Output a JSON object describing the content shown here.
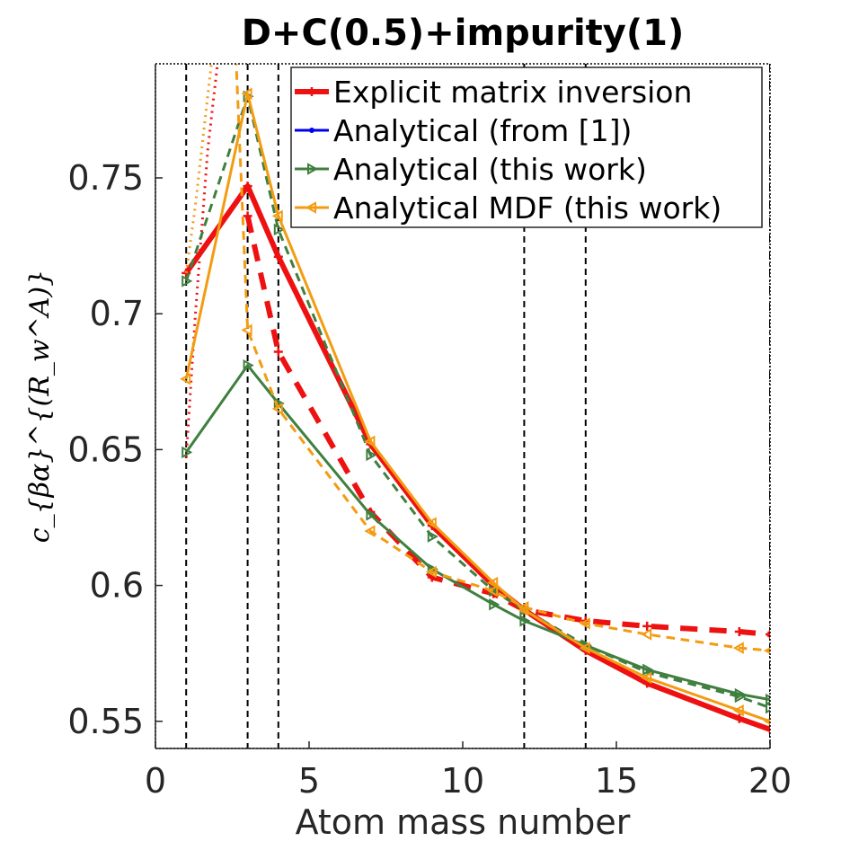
{
  "chart_data": {
    "type": "line",
    "title": "D+C(0.5)+impurity(1)",
    "xlabel": "Atom mass number",
    "ylabel": "c_{βα}^{(R_w^A)}",
    "xlim": [
      0,
      20
    ],
    "ylim": [
      0.54,
      0.792
    ],
    "xticks": [
      0,
      5,
      10,
      15,
      20
    ],
    "xtick_labels": [
      "0",
      "5",
      "10",
      "15",
      "20"
    ],
    "yticks": [
      0.55,
      0.6,
      0.65,
      0.7,
      0.75
    ],
    "ytick_labels": [
      "0.55",
      "0.6",
      "0.65",
      "0.7",
      "0.75"
    ],
    "reference_lines": [
      {
        "x": 1,
        "style": "dashed"
      },
      {
        "x": 3,
        "style": "dashed"
      },
      {
        "x": 4,
        "style": "dashed"
      },
      {
        "x": 12,
        "style": "dashed"
      },
      {
        "x": 14,
        "style": "dashed"
      },
      {
        "x": 20,
        "style": "dashdot"
      }
    ],
    "legend_position": "top-right",
    "series": [
      {
        "name": "Explicit matrix inversion",
        "color": "#ee1111",
        "dash": "solid",
        "width": 6,
        "marker": "plus",
        "show_in_legend": true,
        "x": [
          1,
          3,
          4,
          7,
          9,
          11,
          12,
          14,
          16,
          19,
          20
        ],
        "y": [
          0.715,
          0.747,
          0.721,
          0.652,
          0.622,
          0.6,
          0.591,
          0.576,
          0.564,
          0.551,
          0.547
        ]
      },
      {
        "name": "Explicit matrix inversion (dashed)",
        "color": "#ee1111",
        "dash": "dashed",
        "width": 6,
        "marker": "plus",
        "show_in_legend": false,
        "x": [
          3,
          4,
          7,
          9,
          11,
          12,
          14,
          16,
          19,
          20
        ],
        "y": [
          0.736,
          0.686,
          0.627,
          0.603,
          0.597,
          0.591,
          0.587,
          0.585,
          0.583,
          0.582
        ]
      },
      {
        "name": "Explicit matrix inversion (dotted)",
        "color": "#ee1111",
        "dash": "dotted",
        "width": 3,
        "marker": "plus",
        "show_in_legend": false,
        "x": [
          1,
          1.3,
          1.7,
          2.1
        ],
        "y": [
          0.647,
          0.7,
          0.76,
          0.8
        ]
      },
      {
        "name": "Analytical (from [1])",
        "color": "#0000ee",
        "dash": "solid",
        "width": 3,
        "marker": "dot",
        "show_in_legend": true,
        "x": [],
        "y": []
      },
      {
        "name": "Analytical (this work)",
        "color": "#3f7f3f",
        "dash": "solid",
        "width": 3,
        "marker": "triangle",
        "show_in_legend": true,
        "x": [
          1,
          3,
          4,
          7,
          9,
          11,
          12,
          14,
          16,
          19,
          20
        ],
        "y": [
          0.649,
          0.681,
          0.667,
          0.626,
          0.606,
          0.593,
          0.587,
          0.578,
          0.569,
          0.56,
          0.558
        ]
      },
      {
        "name": "Analytical (this work) (dashed)",
        "color": "#3f7f3f",
        "dash": "dashed",
        "width": 3,
        "marker": "triangle",
        "show_in_legend": false,
        "x": [
          1,
          3,
          4,
          7,
          9,
          11,
          12,
          14,
          16,
          19,
          20
        ],
        "y": [
          0.712,
          0.78,
          0.731,
          0.648,
          0.618,
          0.598,
          0.591,
          0.578,
          0.568,
          0.559,
          0.555
        ]
      },
      {
        "name": "Analytical MDF (this work)",
        "color": "#f39c12",
        "dash": "solid",
        "width": 3,
        "marker": "triangle-left",
        "show_in_legend": true,
        "x": [
          1,
          3,
          4,
          7,
          9,
          11,
          12,
          14,
          16,
          19,
          20
        ],
        "y": [
          0.676,
          0.781,
          0.736,
          0.653,
          0.623,
          0.601,
          0.591,
          0.577,
          0.566,
          0.554,
          0.55
        ]
      },
      {
        "name": "Analytical MDF (this work) (dashed)",
        "color": "#f39c12",
        "dash": "dashed",
        "width": 3,
        "marker": "triangle-left",
        "show_in_legend": false,
        "x": [
          2.6,
          3,
          4,
          7,
          9,
          11,
          12,
          14,
          16,
          19,
          20
        ],
        "y": [
          0.8,
          0.694,
          0.665,
          0.62,
          0.605,
          0.598,
          0.592,
          0.586,
          0.582,
          0.577,
          0.576
        ]
      },
      {
        "name": "Analytical MDF (this work) (dotted)",
        "color": "#f39c12",
        "dash": "dotted",
        "width": 3,
        "marker": "triangle-left",
        "show_in_legend": false,
        "x": [
          1,
          1.3,
          1.6,
          1.85
        ],
        "y": [
          0.715,
          0.74,
          0.77,
          0.795
        ]
      }
    ]
  }
}
